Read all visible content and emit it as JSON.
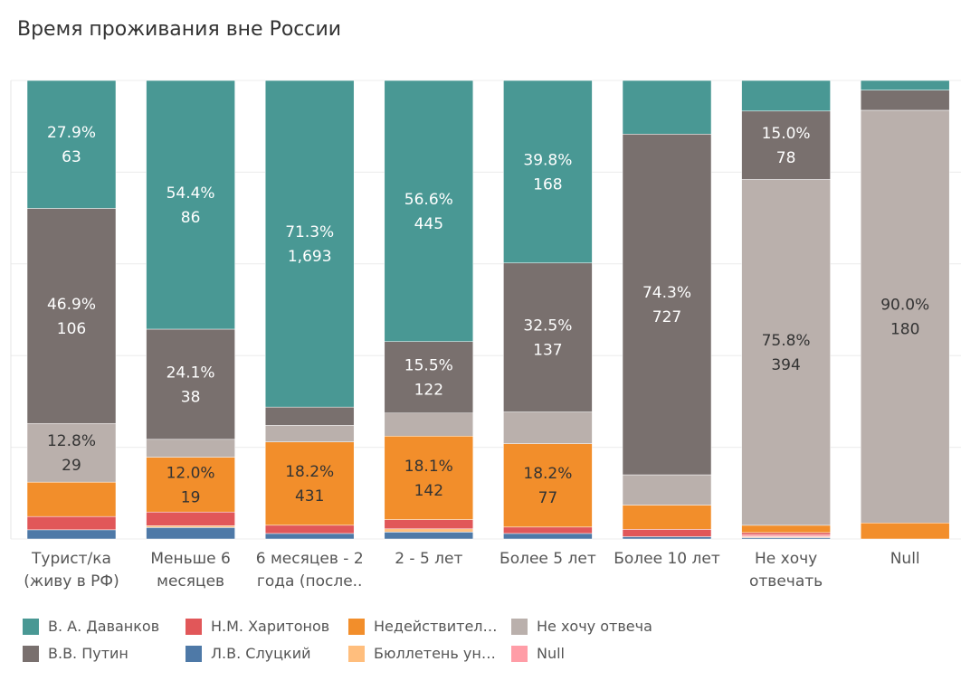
{
  "title": "Время проживания вне России",
  "chart_data": {
    "type": "bar",
    "stacked": true,
    "normalized": true,
    "categories": [
      [
        "Турист/ка",
        "(живу в РФ)"
      ],
      [
        "Меньше 6",
        "месяцев"
      ],
      [
        "6 месяцев - 2",
        "года (после.."
      ],
      [
        "2 - 5 лет"
      ],
      [
        "Более 5 лет"
      ],
      [
        "Более 10 лет"
      ],
      [
        "Не хочу",
        "отвечать"
      ],
      [
        "Null"
      ]
    ],
    "ylim": [
      0,
      100
    ],
    "grid": true,
    "legend_position": "bottom",
    "series": [
      {
        "name": "Л.В. Слуцкий",
        "color": "#4e79a7",
        "values": [
          2.0,
          2.5,
          1.2,
          1.5,
          1.2,
          0.5,
          0.3,
          0
        ]
      },
      {
        "name": "Бюллетень ун…",
        "color": "#ffbe7d",
        "values": [
          0,
          0.4,
          0,
          0.7,
          0,
          0,
          0.2,
          0
        ]
      },
      {
        "name": "Null",
        "color": "#ff9da7",
        "values": [
          0,
          0,
          0,
          0,
          0,
          0,
          0.4,
          0
        ]
      },
      {
        "name": "Н.М. Харитонов",
        "color": "#e15759",
        "values": [
          2.9,
          3.0,
          1.8,
          2.0,
          1.4,
          1.6,
          0.5,
          0
        ]
      },
      {
        "name": "Недействител…",
        "color": "#f28e2b",
        "values": [
          7.5,
          12.0,
          18.2,
          18.1,
          18.2,
          5.3,
          1.6,
          3.5
        ]
      },
      {
        "name": "Не хочу отвеча",
        "color": "#bab0ac",
        "values": [
          12.8,
          3.9,
          3.6,
          5.0,
          6.9,
          6.6,
          75.8,
          90.0
        ]
      },
      {
        "name": "В.В. Путин",
        "color": "#79706e",
        "values": [
          46.9,
          24.1,
          4.0,
          15.5,
          32.5,
          74.3,
          15.0,
          4.4
        ]
      },
      {
        "name": "В. А. Даванков",
        "color": "#499894",
        "values": [
          27.9,
          54.4,
          71.3,
          56.6,
          39.8,
          11.7,
          6.7,
          2.1
        ]
      }
    ],
    "data_labels": [
      {
        "category": 0,
        "series": 7,
        "lines": [
          "27.9%",
          "63"
        ]
      },
      {
        "category": 0,
        "series": 6,
        "lines": [
          "46.9%",
          "106"
        ]
      },
      {
        "category": 0,
        "series": 5,
        "lines": [
          "12.8%",
          "29"
        ]
      },
      {
        "category": 1,
        "series": 7,
        "lines": [
          "54.4%",
          "86"
        ]
      },
      {
        "category": 1,
        "series": 6,
        "lines": [
          "24.1%",
          "38"
        ]
      },
      {
        "category": 1,
        "series": 4,
        "lines": [
          "12.0%",
          "19"
        ]
      },
      {
        "category": 2,
        "series": 7,
        "lines": [
          "71.3%",
          "1,693"
        ]
      },
      {
        "category": 2,
        "series": 4,
        "lines": [
          "18.2%",
          "431"
        ]
      },
      {
        "category": 3,
        "series": 7,
        "lines": [
          "56.6%",
          "445"
        ]
      },
      {
        "category": 3,
        "series": 6,
        "lines": [
          "15.5%",
          "122"
        ]
      },
      {
        "category": 3,
        "series": 4,
        "lines": [
          "18.1%",
          "142"
        ]
      },
      {
        "category": 4,
        "series": 7,
        "lines": [
          "39.8%",
          "168"
        ]
      },
      {
        "category": 4,
        "series": 6,
        "lines": [
          "32.5%",
          "137"
        ]
      },
      {
        "category": 4,
        "series": 4,
        "lines": [
          "18.2%",
          "77"
        ]
      },
      {
        "category": 5,
        "series": 6,
        "lines": [
          "74.3%",
          "727"
        ]
      },
      {
        "category": 6,
        "series": 6,
        "lines": [
          "15.0%",
          "78"
        ]
      },
      {
        "category": 6,
        "series": 5,
        "lines": [
          "75.8%",
          "394"
        ]
      },
      {
        "category": 7,
        "series": 5,
        "lines": [
          "90.0%",
          "180"
        ]
      }
    ],
    "legend": [
      {
        "name": "В. А. Даванков",
        "color": "#499894"
      },
      {
        "name": "Н.М. Харитонов",
        "color": "#e15759"
      },
      {
        "name": "Недействител…",
        "color": "#f28e2b"
      },
      {
        "name": "Не хочу отвеча",
        "color": "#bab0ac"
      },
      {
        "name": "В.В. Путин",
        "color": "#79706e"
      },
      {
        "name": "Л.В. Слуцкий",
        "color": "#4e79a7"
      },
      {
        "name": "Бюллетень ун…",
        "color": "#ffbe7d"
      },
      {
        "name": "Null",
        "color": "#ff9da7"
      }
    ]
  }
}
